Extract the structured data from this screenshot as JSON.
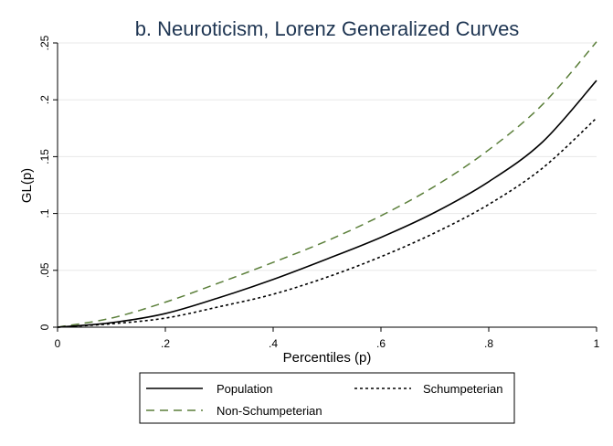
{
  "chart_data": {
    "type": "line",
    "title": "b. Neuroticism, Lorenz Generalized Curves",
    "xlabel": "Percentiles (p)",
    "ylabel": "GL(p)",
    "xlim": [
      0,
      1
    ],
    "ylim": [
      0,
      0.25
    ],
    "xticks": [
      {
        "value": 0,
        "label": "0"
      },
      {
        "value": 0.2,
        "label": ".2"
      },
      {
        "value": 0.4,
        "label": ".4"
      },
      {
        "value": 0.6,
        "label": ".6"
      },
      {
        "value": 0.8,
        "label": ".8"
      },
      {
        "value": 1,
        "label": "1"
      }
    ],
    "yticks": [
      {
        "value": 0,
        "label": "0"
      },
      {
        "value": 0.05,
        "label": ".05"
      },
      {
        "value": 0.1,
        "label": ".1"
      },
      {
        "value": 0.15,
        "label": ".15"
      },
      {
        "value": 0.2,
        "label": ".2"
      },
      {
        "value": 0.25,
        "label": ".25"
      }
    ],
    "grid": "horizontal",
    "legend_position": "bottom",
    "x": [
      0,
      0.1,
      0.2,
      0.3,
      0.4,
      0.5,
      0.6,
      0.7,
      0.8,
      0.9,
      1.0
    ],
    "series": [
      {
        "name": "Population",
        "style": "solid",
        "color": "#000000",
        "values": [
          0,
          0.004,
          0.012,
          0.026,
          0.042,
          0.06,
          0.079,
          0.101,
          0.128,
          0.163,
          0.217
        ]
      },
      {
        "name": "Schumpeterian",
        "style": "dotted",
        "color": "#000000",
        "values": [
          0,
          0.003,
          0.008,
          0.018,
          0.029,
          0.044,
          0.062,
          0.083,
          0.108,
          0.14,
          0.184
        ]
      },
      {
        "name": "Non-Schumpeterian",
        "style": "dashed",
        "color": "#5b7f3a",
        "values": [
          0,
          0.008,
          0.022,
          0.039,
          0.057,
          0.076,
          0.098,
          0.124,
          0.156,
          0.196,
          0.251
        ]
      }
    ]
  }
}
